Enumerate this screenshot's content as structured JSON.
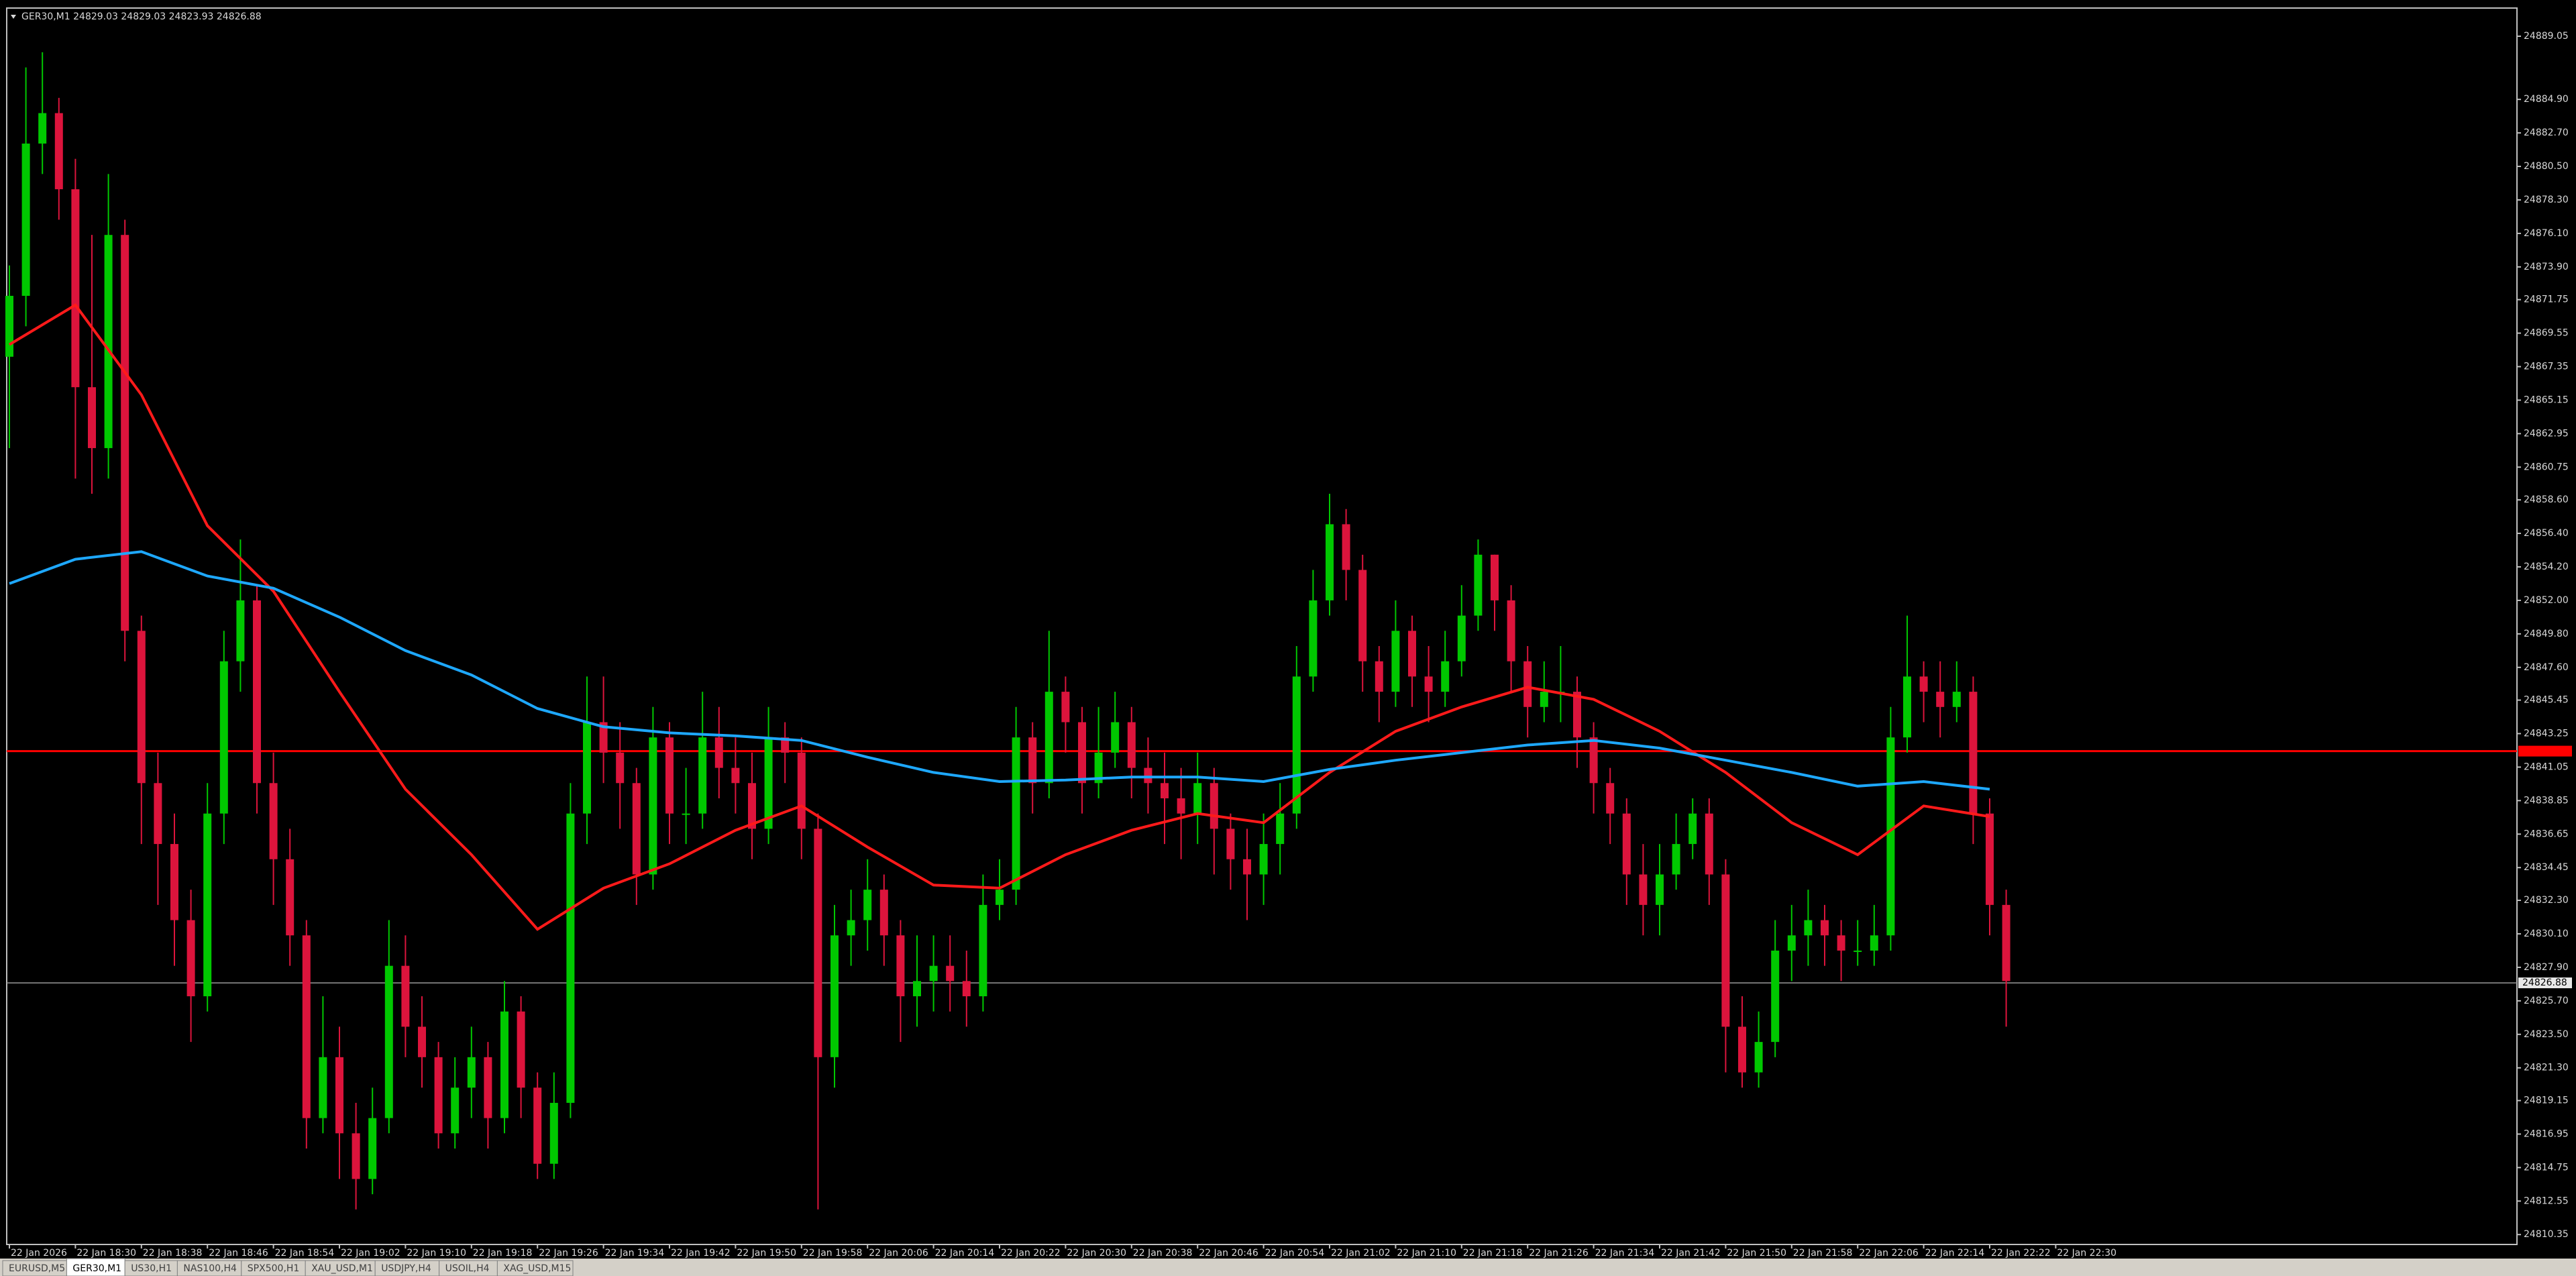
{
  "chart_data": {
    "type": "candlestick",
    "header": "GER30,M1  24829.03 24829.03 24823.93 24826.88",
    "up_color": "#00c800",
    "down_color": "#dc143c",
    "ylim": [
      24809.7,
      24890.9
    ],
    "yticks": [
      24889.05,
      {
        "value": 24884.9,
        "label": "24884.90"
      },
      {
        "value": 24882.7,
        "label": "24882.70"
      },
      {
        "value": 24880.5,
        "label": "24880.50"
      },
      {
        "value": 24878.3,
        "label": "24878.30"
      },
      {
        "value": 24876.1,
        "label": "24876.10"
      },
      {
        "value": 24873.9,
        "label": "24873.90"
      },
      24871.75,
      24869.55,
      24867.35,
      24865.15,
      24862.95,
      24860.75,
      {
        "value": 24858.6,
        "label": "24858.60"
      },
      {
        "value": 24856.4,
        "label": "24856.40"
      },
      {
        "value": 24854.2,
        "label": "24854.20"
      },
      {
        "value": 24852,
        "label": "24852.00"
      },
      {
        "value": 24849.8,
        "label": "24849.80"
      },
      {
        "value": 24847.6,
        "label": "24847.60"
      },
      24845.45,
      24843.25,
      24841.05,
      24838.85,
      24836.65,
      24834.45,
      {
        "value": 24832.3,
        "label": "24832.30"
      },
      {
        "value": 24830.1,
        "label": "24830.10"
      },
      {
        "value": 24827.9,
        "label": "24827.90"
      },
      {
        "value": 24825.7,
        "label": "24825.70"
      },
      {
        "value": 24823.5,
        "label": "24823.50"
      },
      {
        "value": 24821.3,
        "label": "24821.30"
      },
      24819.15,
      24816.95,
      24814.75,
      24812.55,
      24810.35
    ],
    "xticks": [
      "22 Jan 2026",
      "22 Jan 18:30",
      "22 Jan 18:38",
      "22 Jan 18:46",
      "22 Jan 18:54",
      "22 Jan 19:02",
      "22 Jan 19:10",
      "22 Jan 19:18",
      "22 Jan 19:26",
      "22 Jan 19:34",
      "22 Jan 19:42",
      "22 Jan 19:50",
      "22 Jan 19:58",
      "22 Jan 20:06",
      "22 Jan 20:14",
      "22 Jan 20:22",
      "22 Jan 20:30",
      "22 Jan 20:38",
      "22 Jan 20:46",
      "22 Jan 20:54",
      "22 Jan 21:02",
      "22 Jan 21:10",
      "22 Jan 21:18",
      "22 Jan 21:26",
      "22 Jan 21:34",
      "22 Jan 21:42",
      "22 Jan 21:50",
      "22 Jan 21:58",
      "22 Jan 22:06",
      "22 Jan 22:14",
      "22 Jan 22:22",
      "22 Jan 22:30"
    ],
    "candles": [
      [
        24868,
        24874,
        24862,
        24872
      ],
      [
        24872,
        24887,
        24870,
        24882
      ],
      [
        24882,
        24888,
        24880,
        24884
      ],
      [
        24884,
        24885,
        24877,
        24879
      ],
      [
        24879,
        24881,
        24860,
        24866
      ],
      [
        24866,
        24876,
        24859,
        24862
      ],
      [
        24862,
        24880,
        24860,
        24876
      ],
      [
        24876,
        24877,
        24848,
        24850
      ],
      [
        24850,
        24851,
        24836,
        24840
      ],
      [
        24840,
        24842,
        24832,
        24836
      ],
      [
        24836,
        24838,
        24828,
        24831
      ],
      [
        24831,
        24833,
        24823,
        24826
      ],
      [
        24826,
        24840,
        24825,
        24838
      ],
      [
        24838,
        24850,
        24836,
        24848
      ],
      [
        24848,
        24856,
        24846,
        24852
      ],
      [
        24852,
        24853,
        24838,
        24840
      ],
      [
        24840,
        24842,
        24832,
        24835
      ],
      [
        24835,
        24837,
        24828,
        24830
      ],
      [
        24830,
        24831,
        24816,
        24818
      ],
      [
        24818,
        24826,
        24817,
        24822
      ],
      [
        24822,
        24824,
        24814,
        24817
      ],
      [
        24817,
        24819,
        24812,
        24814
      ],
      [
        24814,
        24820,
        24813,
        24818
      ],
      [
        24818,
        24831,
        24817,
        24828
      ],
      [
        24828,
        24830,
        24822,
        24824
      ],
      [
        24824,
        24826,
        24820,
        24822
      ],
      [
        24822,
        24823,
        24816,
        24817
      ],
      [
        24817,
        24822,
        24816,
        24820
      ],
      [
        24820,
        24824,
        24818,
        24822
      ],
      [
        24822,
        24823,
        24816,
        24818
      ],
      [
        24818,
        24827,
        24817,
        24825
      ],
      [
        24825,
        24826,
        24818,
        24820
      ],
      [
        24820,
        24821,
        24814,
        24815
      ],
      [
        24815,
        24821,
        24814,
        24819
      ],
      [
        24819,
        24840,
        24818,
        24838
      ],
      [
        24838,
        24847,
        24836,
        24844
      ],
      [
        24844,
        24847,
        24840,
        24842
      ],
      [
        24842,
        24844,
        24837,
        24840
      ],
      [
        24840,
        24841,
        24832,
        24834
      ],
      [
        24834,
        24845,
        24833,
        24843
      ],
      [
        24843,
        24844,
        24836,
        24838
      ],
      [
        24838,
        24841,
        24836,
        24838
      ],
      [
        24838,
        24846,
        24837,
        24843
      ],
      [
        24843,
        24845,
        24839,
        24841
      ],
      [
        24841,
        24843,
        24838,
        24840
      ],
      [
        24840,
        24842,
        24835,
        24837
      ],
      [
        24837,
        24845,
        24836,
        24843
      ],
      [
        24843,
        24844,
        24840,
        24842
      ],
      [
        24842,
        24843,
        24835,
        24837
      ],
      [
        24837,
        24838,
        24812,
        24822
      ],
      [
        24822,
        24832,
        24820,
        24830
      ],
      [
        24830,
        24833,
        24828,
        24831
      ],
      [
        24831,
        24835,
        24829,
        24833
      ],
      [
        24833,
        24834,
        24828,
        24830
      ],
      [
        24830,
        24831,
        24823,
        24826
      ],
      [
        24826,
        24830,
        24824,
        24827
      ],
      [
        24827,
        24830,
        24825,
        24828
      ],
      [
        24828,
        24830,
        24825,
        24827
      ],
      [
        24827,
        24829,
        24824,
        24826
      ],
      [
        24826,
        24834,
        24825,
        24832
      ],
      [
        24832,
        24835,
        24831,
        24833
      ],
      [
        24833,
        24845,
        24832,
        24843
      ],
      [
        24843,
        24844,
        24838,
        24840
      ],
      [
        24840,
        24850,
        24839,
        24846
      ],
      [
        24846,
        24847,
        24842,
        24844
      ],
      [
        24844,
        24845,
        24838,
        24840
      ],
      [
        24840,
        24845,
        24839,
        24842
      ],
      [
        24842,
        24846,
        24841,
        24844
      ],
      [
        24844,
        24845,
        24839,
        24841
      ],
      [
        24841,
        24843,
        24838,
        24840
      ],
      [
        24840,
        24842,
        24836,
        24839
      ],
      [
        24839,
        24841,
        24835,
        24838
      ],
      [
        24838,
        24842,
        24836,
        24840
      ],
      [
        24840,
        24841,
        24834,
        24837
      ],
      [
        24837,
        24838,
        24833,
        24835
      ],
      [
        24835,
        24837,
        24831,
        24834
      ],
      [
        24834,
        24838,
        24832,
        24836
      ],
      [
        24836,
        24840,
        24834,
        24838
      ],
      [
        24838,
        24849,
        24837,
        24847
      ],
      [
        24847,
        24854,
        24846,
        24852
      ],
      [
        24852,
        24859,
        24851,
        24857
      ],
      [
        24857,
        24858,
        24852,
        24854
      ],
      [
        24854,
        24855,
        24846,
        24848
      ],
      [
        24848,
        24849,
        24844,
        24846
      ],
      [
        24846,
        24852,
        24845,
        24850
      ],
      [
        24850,
        24851,
        24845,
        24847
      ],
      [
        24847,
        24849,
        24844,
        24846
      ],
      [
        24846,
        24850,
        24845,
        24848
      ],
      [
        24848,
        24853,
        24847,
        24851
      ],
      [
        24851,
        24856,
        24850,
        24855
      ],
      [
        24855,
        24855,
        24850,
        24852
      ],
      [
        24852,
        24853,
        24846,
        24848
      ],
      [
        24848,
        24849,
        24843,
        24845
      ],
      [
        24845,
        24848,
        24844,
        24846
      ],
      [
        24846,
        24849,
        24844,
        24846
      ],
      [
        24846,
        24847,
        24841,
        24843
      ],
      [
        24843,
        24844,
        24838,
        24840
      ],
      [
        24840,
        24841,
        24836,
        24838
      ],
      [
        24838,
        24839,
        24832,
        24834
      ],
      [
        24834,
        24836,
        24830,
        24832
      ],
      [
        24832,
        24836,
        24830,
        24834
      ],
      [
        24834,
        24838,
        24833,
        24836
      ],
      [
        24836,
        24839,
        24835,
        24838
      ],
      [
        24838,
        24839,
        24832,
        24834
      ],
      [
        24834,
        24835,
        24821,
        24824
      ],
      [
        24824,
        24826,
        24820,
        24821
      ],
      [
        24821,
        24825,
        24820,
        24823
      ],
      [
        24823,
        24831,
        24822,
        24829
      ],
      [
        24829,
        24832,
        24827,
        24830
      ],
      [
        24830,
        24833,
        24828,
        24831
      ],
      [
        24831,
        24832,
        24828,
        24830
      ],
      [
        24830,
        24831,
        24827,
        24829
      ],
      [
        24829,
        24831,
        24828,
        24829
      ],
      [
        24829,
        24832,
        24828,
        24830
      ],
      [
        24830,
        24845,
        24829,
        24843
      ],
      [
        24843,
        24851,
        24842,
        24847
      ],
      [
        24847,
        24848,
        24844,
        24846
      ],
      [
        24846,
        24848,
        24843,
        24845
      ],
      [
        24845,
        24848,
        24844,
        24846
      ],
      [
        24846,
        24847,
        24836,
        24838
      ],
      [
        24838,
        24839,
        24830,
        24832
      ],
      [
        24832,
        24833,
        24824,
        24827
      ]
    ],
    "lines": [
      {
        "color": "#ff1a1a",
        "values": [
          24868.8,
          24871.4,
          24865.5,
          24856.9,
          24852.6,
          24846.0,
          24839.6,
          24835.3,
          24830.4,
          24833.1,
          24834.7,
          24836.9,
          24838.5,
          24835.8,
          24833.3,
          24833.1,
          24835.3,
          24836.9,
          24838.0,
          24837.4,
          24840.7,
          24843.4,
          24845.0,
          24846.3,
          24845.5,
          24843.4,
          24840.7,
          24837.4,
          24835.3,
          24838.5,
          24837.8
        ]
      },
      {
        "color": "#1ea8ff",
        "values": [
          24853.1,
          24854.7,
          24855.2,
          24853.6,
          24852.8,
          24850.9,
          24848.7,
          24847.1,
          24844.9,
          24843.7,
          24843.3,
          24843.1,
          24842.8,
          24841.7,
          24840.7,
          24840.1,
          24840.2,
          24840.4,
          24840.4,
          24840.1,
          24840.9,
          24841.5,
          24842.0,
          24842.5,
          24842.8,
          24842.3,
          24841.5,
          24840.7,
          24839.8,
          24840.1,
          24839.6
        ]
      }
    ],
    "level": {
      "value": 24842.1,
      "color": "#ff0000"
    },
    "bid": 24826.88,
    "bid_color": "#9a9a9a"
  },
  "tabs": [
    "EURUSD,M5",
    "GER30,M1",
    "US30,H1",
    "NAS100,H4",
    "SPX500,H1",
    "XAU_USD,M1",
    "USDJPY,H4",
    "USOIL,H4",
    "XAG_USD,M15"
  ],
  "active_tab": "GER30,M1"
}
